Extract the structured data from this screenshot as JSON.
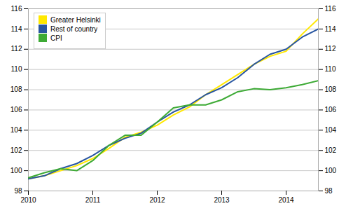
{
  "chart_data": {
    "type": "line",
    "x": [
      2010.0,
      2010.25,
      2010.5,
      2010.75,
      2011.0,
      2011.25,
      2011.5,
      2011.75,
      2012.0,
      2012.25,
      2012.5,
      2012.75,
      2013.0,
      2013.25,
      2013.5,
      2013.75,
      2014.0,
      2014.25,
      2014.5
    ],
    "series": [
      {
        "name": "Greater Helsinki",
        "color": "#FFE800",
        "values": [
          99.2,
          99.5,
          100.0,
          100.5,
          101.2,
          102.2,
          103.3,
          103.8,
          104.5,
          105.5,
          106.3,
          107.5,
          108.5,
          109.5,
          110.5,
          111.3,
          111.8,
          113.5,
          115.0
        ]
      },
      {
        "name": "Rest of country",
        "color": "#2855A0",
        "values": [
          99.2,
          99.5,
          100.2,
          100.7,
          101.5,
          102.5,
          103.2,
          103.7,
          104.8,
          105.8,
          106.5,
          107.5,
          108.2,
          109.2,
          110.5,
          111.5,
          112.0,
          113.2,
          114.0
        ]
      },
      {
        "name": "CPI",
        "color": "#3DAA35",
        "values": [
          99.3,
          99.8,
          100.2,
          100.0,
          101.0,
          102.5,
          103.5,
          103.5,
          104.8,
          106.2,
          106.5,
          106.5,
          107.0,
          107.8,
          108.1,
          108.0,
          108.2,
          108.5,
          108.9
        ]
      }
    ],
    "xlim": [
      2010.0,
      2014.5
    ],
    "ylim": [
      98,
      116
    ],
    "xticks": [
      2010,
      2011,
      2012,
      2013,
      2014
    ],
    "yticks": [
      98,
      100,
      102,
      104,
      106,
      108,
      110,
      112,
      114,
      116
    ],
    "grid": true,
    "legend": "upper left"
  }
}
